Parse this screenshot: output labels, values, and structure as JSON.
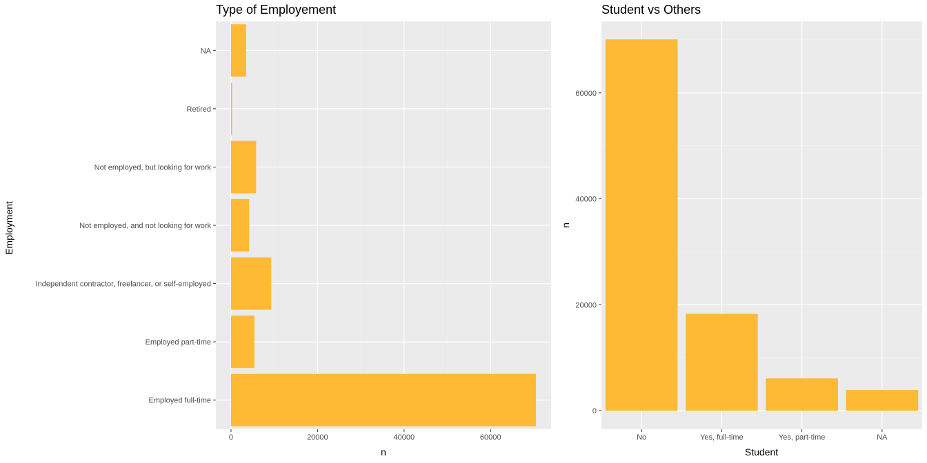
{
  "colors": {
    "bar": "#FFBA35",
    "panel": "#EBEBEB",
    "grid_major": "#FFFFFF",
    "grid_minor": "#F4F4F4",
    "tick": "#333333"
  },
  "chart_data": [
    {
      "type": "bar",
      "orientation": "horizontal",
      "title": "Type of Employement",
      "xlabel": "n",
      "ylabel": "Employment",
      "categories": [
        "Employed full-time",
        "Employed part-time",
        "Independent contractor, freelancer, or self-employed",
        "Not employed, and not looking for work",
        "Not employed, but looking for work",
        "Retired",
        "NA"
      ],
      "values": [
        70500,
        5400,
        9300,
        4200,
        5800,
        250,
        3500
      ],
      "xlim": [
        -3500,
        74000
      ],
      "xticks": [
        0,
        20000,
        40000,
        60000
      ],
      "grid": true
    },
    {
      "type": "bar",
      "orientation": "vertical",
      "title": "Student vs Others",
      "xlabel": "Student",
      "ylabel": "n",
      "categories": [
        "No",
        "Yes, full-time",
        "Yes, part-time",
        "NA"
      ],
      "values": [
        70100,
        18300,
        6100,
        3900
      ],
      "ylim": [
        -3500,
        73500
      ],
      "yticks": [
        0,
        20000,
        40000,
        60000
      ],
      "grid": true
    }
  ]
}
